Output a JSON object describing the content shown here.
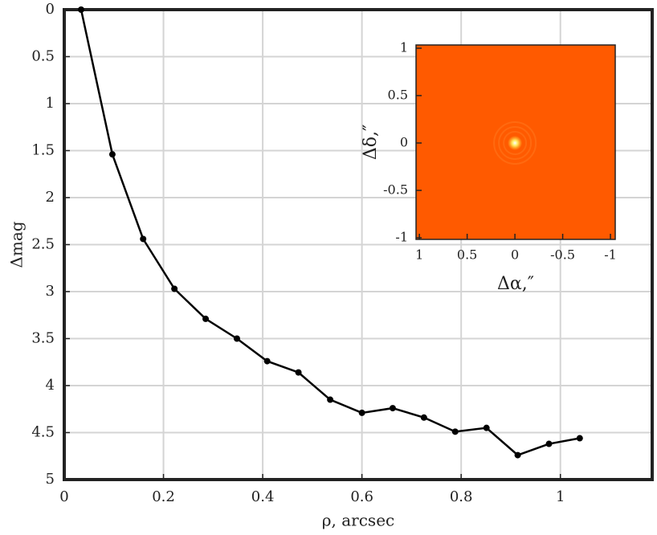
{
  "chart_data": [
    {
      "type": "line",
      "xlabel": "ρ, arcsec",
      "ylabel": "Δmag",
      "x": [
        0.034,
        0.097,
        0.159,
        0.222,
        0.285,
        0.348,
        0.409,
        0.472,
        0.536,
        0.6,
        0.662,
        0.725,
        0.788,
        0.851,
        0.914,
        0.977,
        1.039
      ],
      "values": [
        0,
        1.54,
        2.44,
        2.97,
        3.29,
        3.5,
        3.74,
        3.86,
        4.15,
        4.29,
        4.24,
        4.34,
        4.49,
        4.45,
        4.74,
        4.62,
        4.56
      ],
      "color": "#000000",
      "grid": true,
      "xlim": [
        0,
        1.185
      ],
      "xticks": [
        0,
        0.2,
        0.4,
        0.6,
        0.8,
        1
      ],
      "ylim": [
        5,
        0
      ],
      "yticks": [
        0,
        0.5,
        1,
        1.5,
        2,
        2.5,
        3,
        3.5,
        4,
        4.5,
        5
      ]
    },
    {
      "type": "image",
      "xlabel": "Δα,″",
      "ylabel": "Δδ,″",
      "color": "#ff5a00",
      "xlim": [
        1.035,
        -1.05
      ],
      "xticks": [
        1,
        0.5,
        0,
        -0.5,
        -1
      ],
      "ylim": [
        -1.017,
        1.034
      ],
      "yticks": [
        -1,
        -0.5,
        0,
        0.5,
        1
      ]
    }
  ]
}
